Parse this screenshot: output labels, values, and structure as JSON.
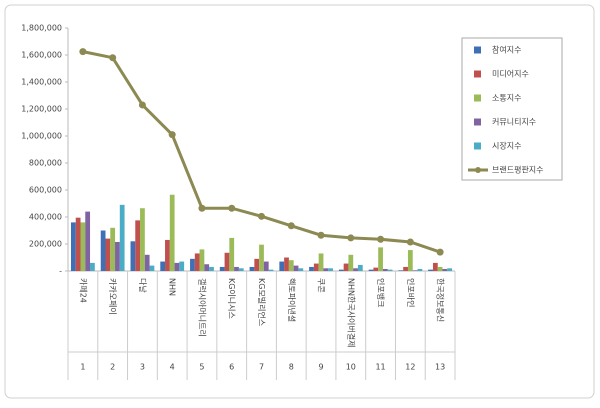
{
  "chart_data": {
    "type": "bar",
    "categories": [
      "카페24",
      "카카오페이",
      "다날",
      "NHN",
      "갤럭시아머니트리",
      "KG이니시스",
      "KG모빌리언스",
      "헥토파이낸셜",
      "쿠콘",
      "NHN한국사이버결제",
      "인포뱅크",
      "인포바인",
      "한국정보통신"
    ],
    "ranks": [
      "1",
      "2",
      "3",
      "4",
      "5",
      "6",
      "7",
      "8",
      "9",
      "10",
      "11",
      "12",
      "13"
    ],
    "series": [
      {
        "name": "참여지수",
        "color": "#3f6fb4",
        "values": [
          360000,
          300000,
          220000,
          70000,
          90000,
          30000,
          30000,
          70000,
          30000,
          10000,
          10000,
          5000,
          10000
        ]
      },
      {
        "name": "미디어지수",
        "color": "#c0504d",
        "values": [
          395000,
          240000,
          375000,
          230000,
          130000,
          135000,
          90000,
          100000,
          55000,
          55000,
          25000,
          30000,
          60000
        ]
      },
      {
        "name": "소통지수",
        "color": "#9bbb59",
        "values": [
          360000,
          320000,
          465000,
          565000,
          160000,
          245000,
          195000,
          80000,
          130000,
          120000,
          175000,
          155000,
          30000
        ]
      },
      {
        "name": "커뮤니티지수",
        "color": "#8064a2",
        "values": [
          440000,
          215000,
          120000,
          60000,
          50000,
          30000,
          70000,
          40000,
          20000,
          20000,
          15000,
          5000,
          15000
        ]
      },
      {
        "name": "시장지수",
        "color": "#4bacc6",
        "values": [
          60000,
          490000,
          40000,
          70000,
          30000,
          20000,
          10000,
          20000,
          20000,
          45000,
          10000,
          15000,
          20000
        ]
      },
      {
        "name": "브랜드평판지수",
        "color": "#8c8a52",
        "type": "line",
        "values": [
          1625000,
          1580000,
          1230000,
          1010000,
          465000,
          465000,
          405000,
          335000,
          265000,
          245000,
          235000,
          215000,
          140000
        ]
      }
    ],
    "ylim": [
      0,
      1800000
    ],
    "yticks": [
      {
        "value": 0,
        "label": "-"
      },
      {
        "value": 200000,
        "label": "200,000"
      },
      {
        "value": 400000,
        "label": "400,000"
      },
      {
        "value": 600000,
        "label": "600,000"
      },
      {
        "value": 800000,
        "label": "800,000"
      },
      {
        "value": 1000000,
        "label": "1,000,000"
      },
      {
        "value": 1200000,
        "label": "1,200,000"
      },
      {
        "value": 1400000,
        "label": "1,400,000"
      },
      {
        "value": 1600000,
        "label": "1,600,000"
      },
      {
        "value": 1800000,
        "label": "1,800,000"
      }
    ],
    "grid": false,
    "legend": "right"
  }
}
